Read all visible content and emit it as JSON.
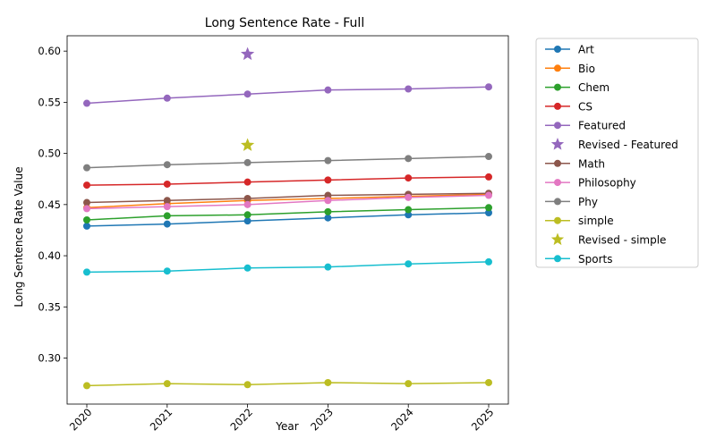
{
  "chart_data": {
    "type": "line",
    "title": "Long Sentence Rate - Full",
    "xlabel": "Year",
    "ylabel": "Long Sentence Rate Value",
    "x": [
      "2020",
      "2021",
      "2022",
      "2023",
      "2024",
      "2025"
    ],
    "ylim": [
      0.255,
      0.615
    ],
    "yticks": [
      "0.30",
      "0.35",
      "0.40",
      "0.45",
      "0.50",
      "0.55",
      "0.60"
    ],
    "grid": false,
    "legend_position": "outside-right",
    "series": [
      {
        "name": "Art",
        "color": "#1f77b4",
        "values": [
          0.429,
          0.431,
          0.434,
          0.437,
          0.44,
          0.442
        ]
      },
      {
        "name": "Bio",
        "color": "#ff7f0e",
        "values": [
          0.447,
          0.451,
          0.454,
          0.456,
          0.458,
          0.46
        ]
      },
      {
        "name": "Chem",
        "color": "#2ca02c",
        "values": [
          0.435,
          0.439,
          0.44,
          0.443,
          0.445,
          0.447
        ]
      },
      {
        "name": "CS",
        "color": "#d62728",
        "values": [
          0.469,
          0.47,
          0.472,
          0.474,
          0.476,
          0.477
        ]
      },
      {
        "name": "Featured",
        "color": "#9467bd",
        "values": [
          0.549,
          0.554,
          0.558,
          0.562,
          0.563,
          0.565
        ]
      },
      {
        "name": "Revised - Featured",
        "color": "#9467bd",
        "marker": "star",
        "points": [
          {
            "x": "2022",
            "y": 0.597
          }
        ]
      },
      {
        "name": "Math",
        "color": "#8c564b",
        "values": [
          0.452,
          0.454,
          0.456,
          0.459,
          0.46,
          0.461
        ]
      },
      {
        "name": "Philosophy",
        "color": "#e377c2",
        "values": [
          0.446,
          0.448,
          0.45,
          0.454,
          0.457,
          0.459
        ]
      },
      {
        "name": "Phy",
        "color": "#7f7f7f",
        "values": [
          0.486,
          0.489,
          0.491,
          0.493,
          0.495,
          0.497
        ]
      },
      {
        "name": "simple",
        "color": "#bcbd22",
        "values": [
          0.273,
          0.275,
          0.274,
          0.276,
          0.275,
          0.276
        ]
      },
      {
        "name": "Revised - simple",
        "color": "#bcbd22",
        "marker": "star",
        "points": [
          {
            "x": "2022",
            "y": 0.508
          }
        ]
      },
      {
        "name": "Sports",
        "color": "#17becf",
        "values": [
          0.384,
          0.385,
          0.388,
          0.389,
          0.392,
          0.394
        ]
      }
    ]
  }
}
